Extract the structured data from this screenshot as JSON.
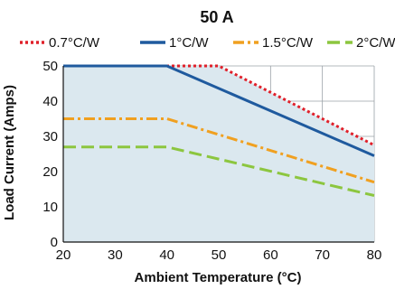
{
  "chart_data": {
    "type": "line",
    "title": "50 A",
    "xlabel": "Ambient Temperature (°C)",
    "ylabel": "Load Current (Amps)",
    "xlim": [
      20,
      80
    ],
    "ylim": [
      0,
      50
    ],
    "xticks": [
      20,
      30,
      40,
      50,
      60,
      70,
      80
    ],
    "yticks": [
      0,
      10,
      20,
      30,
      40,
      50
    ],
    "grid": true,
    "legend_position": "top",
    "plot_background": "#dbe8ef",
    "series": [
      {
        "name": "0.7°C/W",
        "color": "#e0202a",
        "dash": "dotted",
        "x": [
          20,
          50,
          80
        ],
        "y": [
          50,
          50,
          27.5
        ]
      },
      {
        "name": "1°C/W",
        "color": "#1f5a9e",
        "dash": "solid",
        "x": [
          20,
          40,
          80
        ],
        "y": [
          50,
          50,
          24.5
        ]
      },
      {
        "name": "1.5°C/W",
        "color": "#f0a020",
        "dash": "dashdot",
        "x": [
          20,
          40,
          80
        ],
        "y": [
          35,
          35,
          17
        ]
      },
      {
        "name": "2°C/W",
        "color": "#8cc63f",
        "dash": "dashed",
        "x": [
          20,
          40,
          80
        ],
        "y": [
          27,
          27,
          13.2
        ]
      }
    ]
  }
}
